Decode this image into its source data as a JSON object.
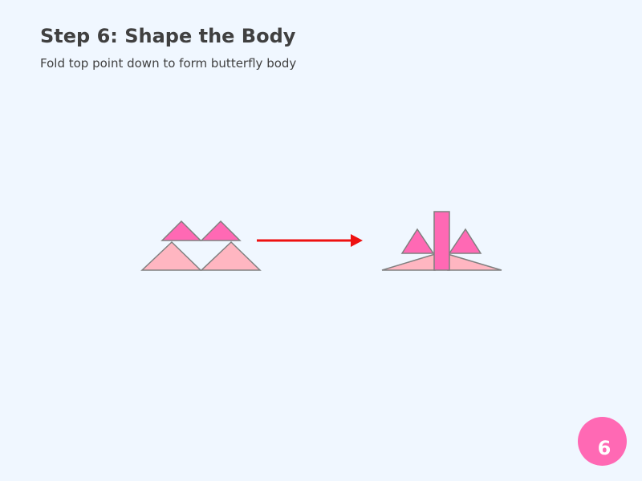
{
  "header": {
    "title": "Step 6: Shape the Body",
    "subtitle": "Fold top point down to form butterfly body"
  },
  "step_badge": {
    "number": "6"
  },
  "colors": {
    "background": "#f0f7ff",
    "light_pink": "#ffb6c1",
    "hot_pink": "#ff69b4",
    "outline": "#808080",
    "arrow": "#ee1111",
    "text": "#404040"
  }
}
